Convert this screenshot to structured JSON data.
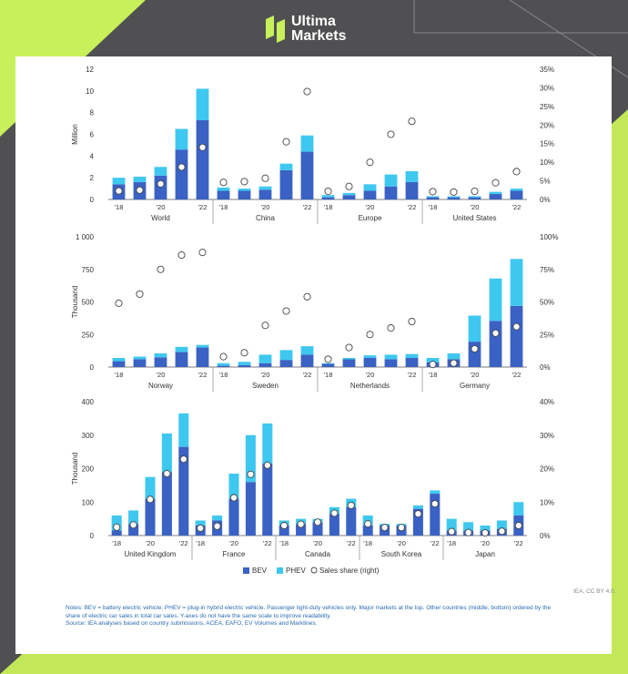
{
  "brand": {
    "name_line1": "Ultima",
    "name_line2": "Markets",
    "accent_color": "#c8f05a",
    "watermark": "@Ultima Markets"
  },
  "colors": {
    "bev": "#3a62c4",
    "phev": "#3ec8f0"
  },
  "legend": {
    "bev": "BEV",
    "phev": "PHEV",
    "share": "Sales share (right)"
  },
  "credit": "IEA, CC BY 4.0.",
  "notes": "Notes: BEV = battery electric vehicle; PHEV = plug-in hybrid electric vehicle. Passenger light-duty vehicles only. Major markets at the top. Other countries (middle, bottom) ordered by the share of electric car sales in total car sales. Y-axes do not have the same scale to improve readability.",
  "source": "Source: IEA analyses based on country submissions, ACEA, EAFO, EV Volumes and Marklines.",
  "chart_data": [
    {
      "type": "bar",
      "ylabel": "Million",
      "yticks": [
        "0",
        "2",
        "4",
        "6",
        "8",
        "10",
        "12"
      ],
      "ylim": [
        0,
        12
      ],
      "y2ticks": [
        "0%",
        "5%",
        "10%",
        "15%",
        "20%",
        "25%",
        "30%",
        "35%"
      ],
      "y2lim": [
        0,
        35
      ],
      "xticks": [
        "'18",
        "'20",
        "'22"
      ],
      "groups": [
        {
          "name": "World",
          "bev": [
            1.4,
            1.6,
            2.2,
            4.6,
            7.3
          ],
          "phev": [
            0.6,
            0.5,
            0.8,
            1.9,
            2.9
          ],
          "share": [
            2.3,
            2.5,
            4.2,
            8.7,
            14
          ]
        },
        {
          "name": "China",
          "bev": [
            0.8,
            0.8,
            0.9,
            2.7,
            4.4
          ],
          "phev": [
            0.3,
            0.2,
            0.3,
            0.6,
            1.5
          ],
          "share": [
            4.6,
            4.8,
            5.7,
            15.5,
            29
          ]
        },
        {
          "name": "Europe",
          "bev": [
            0.2,
            0.4,
            0.8,
            1.2,
            1.6
          ],
          "phev": [
            0.2,
            0.2,
            0.6,
            1.1,
            1.0
          ],
          "share": [
            2.2,
            3.5,
            10,
            17.5,
            21
          ]
        },
        {
          "name": "United States",
          "bev": [
            0.2,
            0.2,
            0.2,
            0.5,
            0.8
          ],
          "phev": [
            0.1,
            0.1,
            0.1,
            0.2,
            0.2
          ],
          "share": [
            2.1,
            2.0,
            2.2,
            4.5,
            7.5
          ]
        }
      ]
    },
    {
      "type": "bar",
      "ylabel": "Thousand",
      "yticks": [
        "0",
        "250",
        "500",
        "750",
        "1 000"
      ],
      "ylim": [
        0,
        1000
      ],
      "y2ticks": [
        "0%",
        "25%",
        "50%",
        "75%",
        "100%"
      ],
      "y2lim": [
        0,
        100
      ],
      "xticks": [
        "'18",
        "'20",
        "'22"
      ],
      "groups": [
        {
          "name": "Norway",
          "bev": [
            45,
            60,
            75,
            115,
            150
          ],
          "phev": [
            25,
            20,
            30,
            40,
            20
          ],
          "share": [
            49,
            56,
            75,
            86,
            88
          ]
        },
        {
          "name": "Sweden",
          "bev": [
            10,
            15,
            30,
            55,
            95
          ],
          "phev": [
            20,
            25,
            65,
            75,
            65
          ],
          "share": [
            8,
            11,
            32,
            43,
            54
          ]
        },
        {
          "name": "Netherlands",
          "bev": [
            25,
            60,
            70,
            60,
            70
          ],
          "phev": [
            5,
            10,
            20,
            35,
            30
          ],
          "share": [
            6,
            15,
            25,
            30,
            35
          ]
        },
        {
          "name": "Germany",
          "bev": [
            35,
            60,
            195,
            355,
            470
          ],
          "phev": [
            35,
            45,
            200,
            325,
            360
          ],
          "share": [
            2,
            3,
            14,
            26,
            31
          ]
        }
      ]
    },
    {
      "type": "bar",
      "ylabel": "Thousand",
      "yticks": [
        "0",
        "100",
        "200",
        "300",
        "400"
      ],
      "ylim": [
        0,
        400
      ],
      "y2ticks": [
        "0%",
        "10%",
        "20%",
        "30%",
        "40%"
      ],
      "y2lim": [
        0,
        40
      ],
      "xticks": [
        "'18",
        "'20",
        "'22"
      ],
      "groups": [
        {
          "name": "United Kingdom",
          "bev": [
            15,
            35,
            110,
            190,
            265
          ],
          "phev": [
            45,
            40,
            65,
            115,
            100
          ],
          "share": [
            2.5,
            3.2,
            10.8,
            18.5,
            22.8
          ]
        },
        {
          "name": "France",
          "bev": [
            30,
            45,
            110,
            160,
            215
          ],
          "phev": [
            15,
            15,
            75,
            140,
            120
          ],
          "share": [
            2.2,
            2.8,
            11.3,
            18.3,
            21
          ]
        },
        {
          "name": "Canada",
          "bev": [
            30,
            35,
            40,
            65,
            85
          ],
          "phev": [
            15,
            15,
            10,
            20,
            25
          ],
          "share": [
            3,
            3.4,
            4,
            6.7,
            9
          ]
        },
        {
          "name": "South Korea",
          "bev": [
            30,
            30,
            30,
            80,
            125
          ],
          "phev": [
            30,
            5,
            5,
            10,
            10
          ],
          "share": [
            3.5,
            2.4,
            2.4,
            6.5,
            9.5
          ]
        },
        {
          "name": "Japan",
          "bev": [
            15,
            15,
            15,
            20,
            60
          ],
          "phev": [
            35,
            25,
            15,
            25,
            40
          ],
          "share": [
            1.2,
            0.9,
            0.8,
            1.3,
            3
          ]
        }
      ]
    }
  ]
}
